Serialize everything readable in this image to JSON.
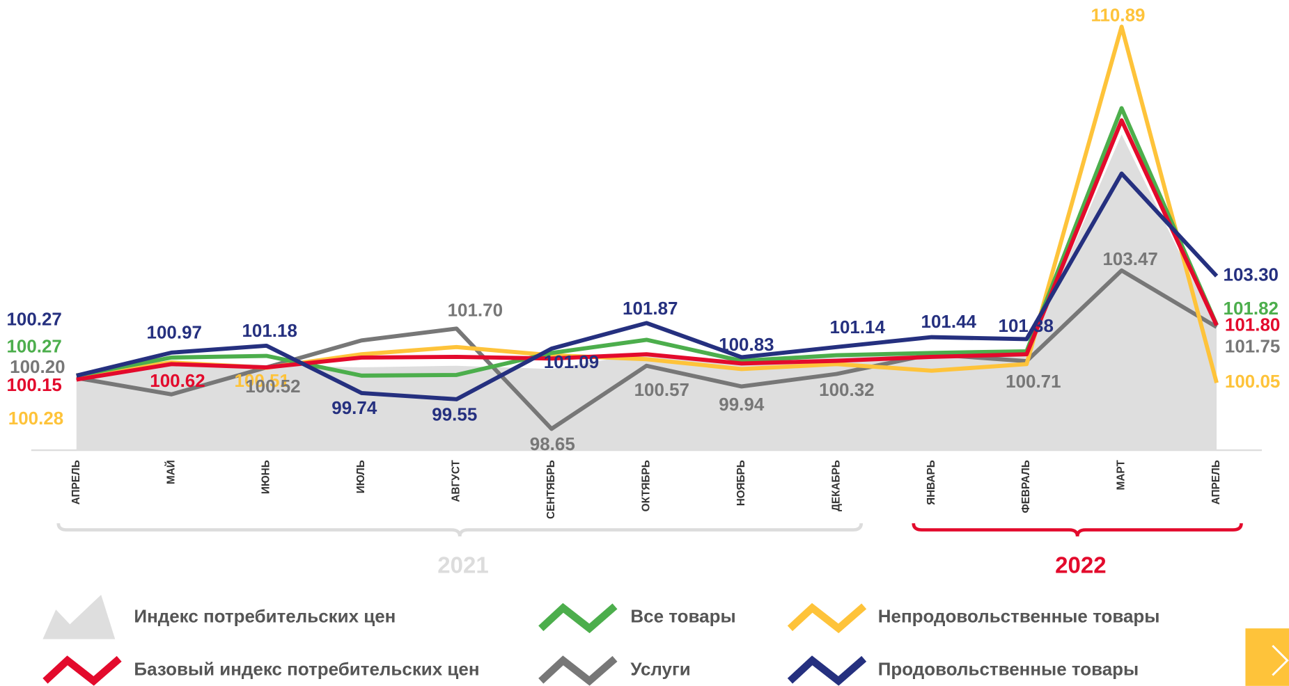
{
  "chart_data": {
    "type": "line",
    "categories": [
      "АПРЕЛЬ",
      "МАЙ",
      "ИЮНЬ",
      "ИЮЛЬ",
      "АВГУСТ",
      "СЕНТЯБРЬ",
      "ОКТЯБРЬ",
      "НОЯБРЬ",
      "ДЕКАБРЬ",
      "ЯНВАРЬ",
      "ФЕВРАЛЬ",
      "МАРТ",
      "АПРЕЛЬ"
    ],
    "year_groups": [
      {
        "label": "2021",
        "start": 0,
        "end": 8,
        "color": "#dcdcdc"
      },
      {
        "label": "2022",
        "start": 9,
        "end": 12,
        "color": "#e30a2c"
      }
    ],
    "ylim": [
      98.0,
      111.7
    ],
    "series": [
      {
        "name": "Индекс потребительских цен",
        "color": "#dedede",
        "style": "area",
        "values": [
          100.22,
          100.72,
          100.59,
          100.52,
          100.57,
          100.47,
          100.96,
          100.72,
          100.82,
          100.96,
          100.92,
          107.61,
          101.71
        ],
        "value_labels": [
          null,
          null,
          null,
          null,
          null,
          null,
          null,
          null,
          null,
          null,
          null,
          null,
          null
        ]
      },
      {
        "name": "Все товары",
        "color": "#4cae4c",
        "style": "line",
        "values": [
          100.27,
          100.82,
          100.87,
          100.27,
          100.29,
          100.96,
          101.36,
          100.72,
          100.89,
          100.96,
          101.01,
          108.41,
          101.82
        ],
        "value_labels": [
          "100.27",
          null,
          null,
          null,
          null,
          null,
          null,
          null,
          null,
          null,
          null,
          null,
          "101.82"
        ]
      },
      {
        "name": "Непродовольственные товары",
        "color": "#fec33a",
        "style": "line",
        "values": [
          100.28,
          100.67,
          100.51,
          100.92,
          101.14,
          100.89,
          100.77,
          100.47,
          100.62,
          100.42,
          100.62,
          110.89,
          100.05
        ],
        "value_labels": [
          "100.28",
          null,
          "100.51",
          null,
          null,
          null,
          null,
          null,
          null,
          null,
          null,
          "110.89",
          "100.05"
        ]
      },
      {
        "name": "Базовый индекс потребительских цен",
        "color": "#e30a2c",
        "style": "line",
        "values": [
          100.15,
          100.62,
          100.52,
          100.82,
          100.84,
          100.79,
          100.92,
          100.64,
          100.72,
          100.84,
          100.92,
          108.04,
          101.8
        ],
        "value_labels": [
          "100.15",
          "100.62",
          null,
          null,
          null,
          null,
          null,
          null,
          null,
          null,
          null,
          null,
          "101.80"
        ]
      },
      {
        "name": "Услуги",
        "color": "#777777",
        "style": "line",
        "values": [
          100.2,
          99.7,
          100.52,
          101.34,
          101.7,
          98.65,
          100.57,
          99.94,
          100.32,
          100.92,
          100.71,
          103.47,
          101.75
        ],
        "value_labels": [
          "100.20",
          null,
          "100.52",
          null,
          "101.70",
          "98.65",
          "100.57",
          "99.94",
          "100.32",
          null,
          "100.71",
          "103.47",
          "101.75"
        ]
      },
      {
        "name": "Продовольственные товары",
        "color": "#25307f",
        "style": "line",
        "values": [
          100.27,
          100.97,
          101.18,
          99.74,
          99.55,
          101.09,
          101.87,
          100.83,
          101.14,
          101.44,
          101.38,
          106.42,
          103.3
        ],
        "value_labels": [
          "100.27",
          "100.97",
          "101.18",
          "99.74",
          "99.55",
          "101.09",
          "101.87",
          "100.83",
          "101.14",
          "101.44",
          "101.38",
          null,
          "103.30"
        ]
      }
    ]
  }
}
